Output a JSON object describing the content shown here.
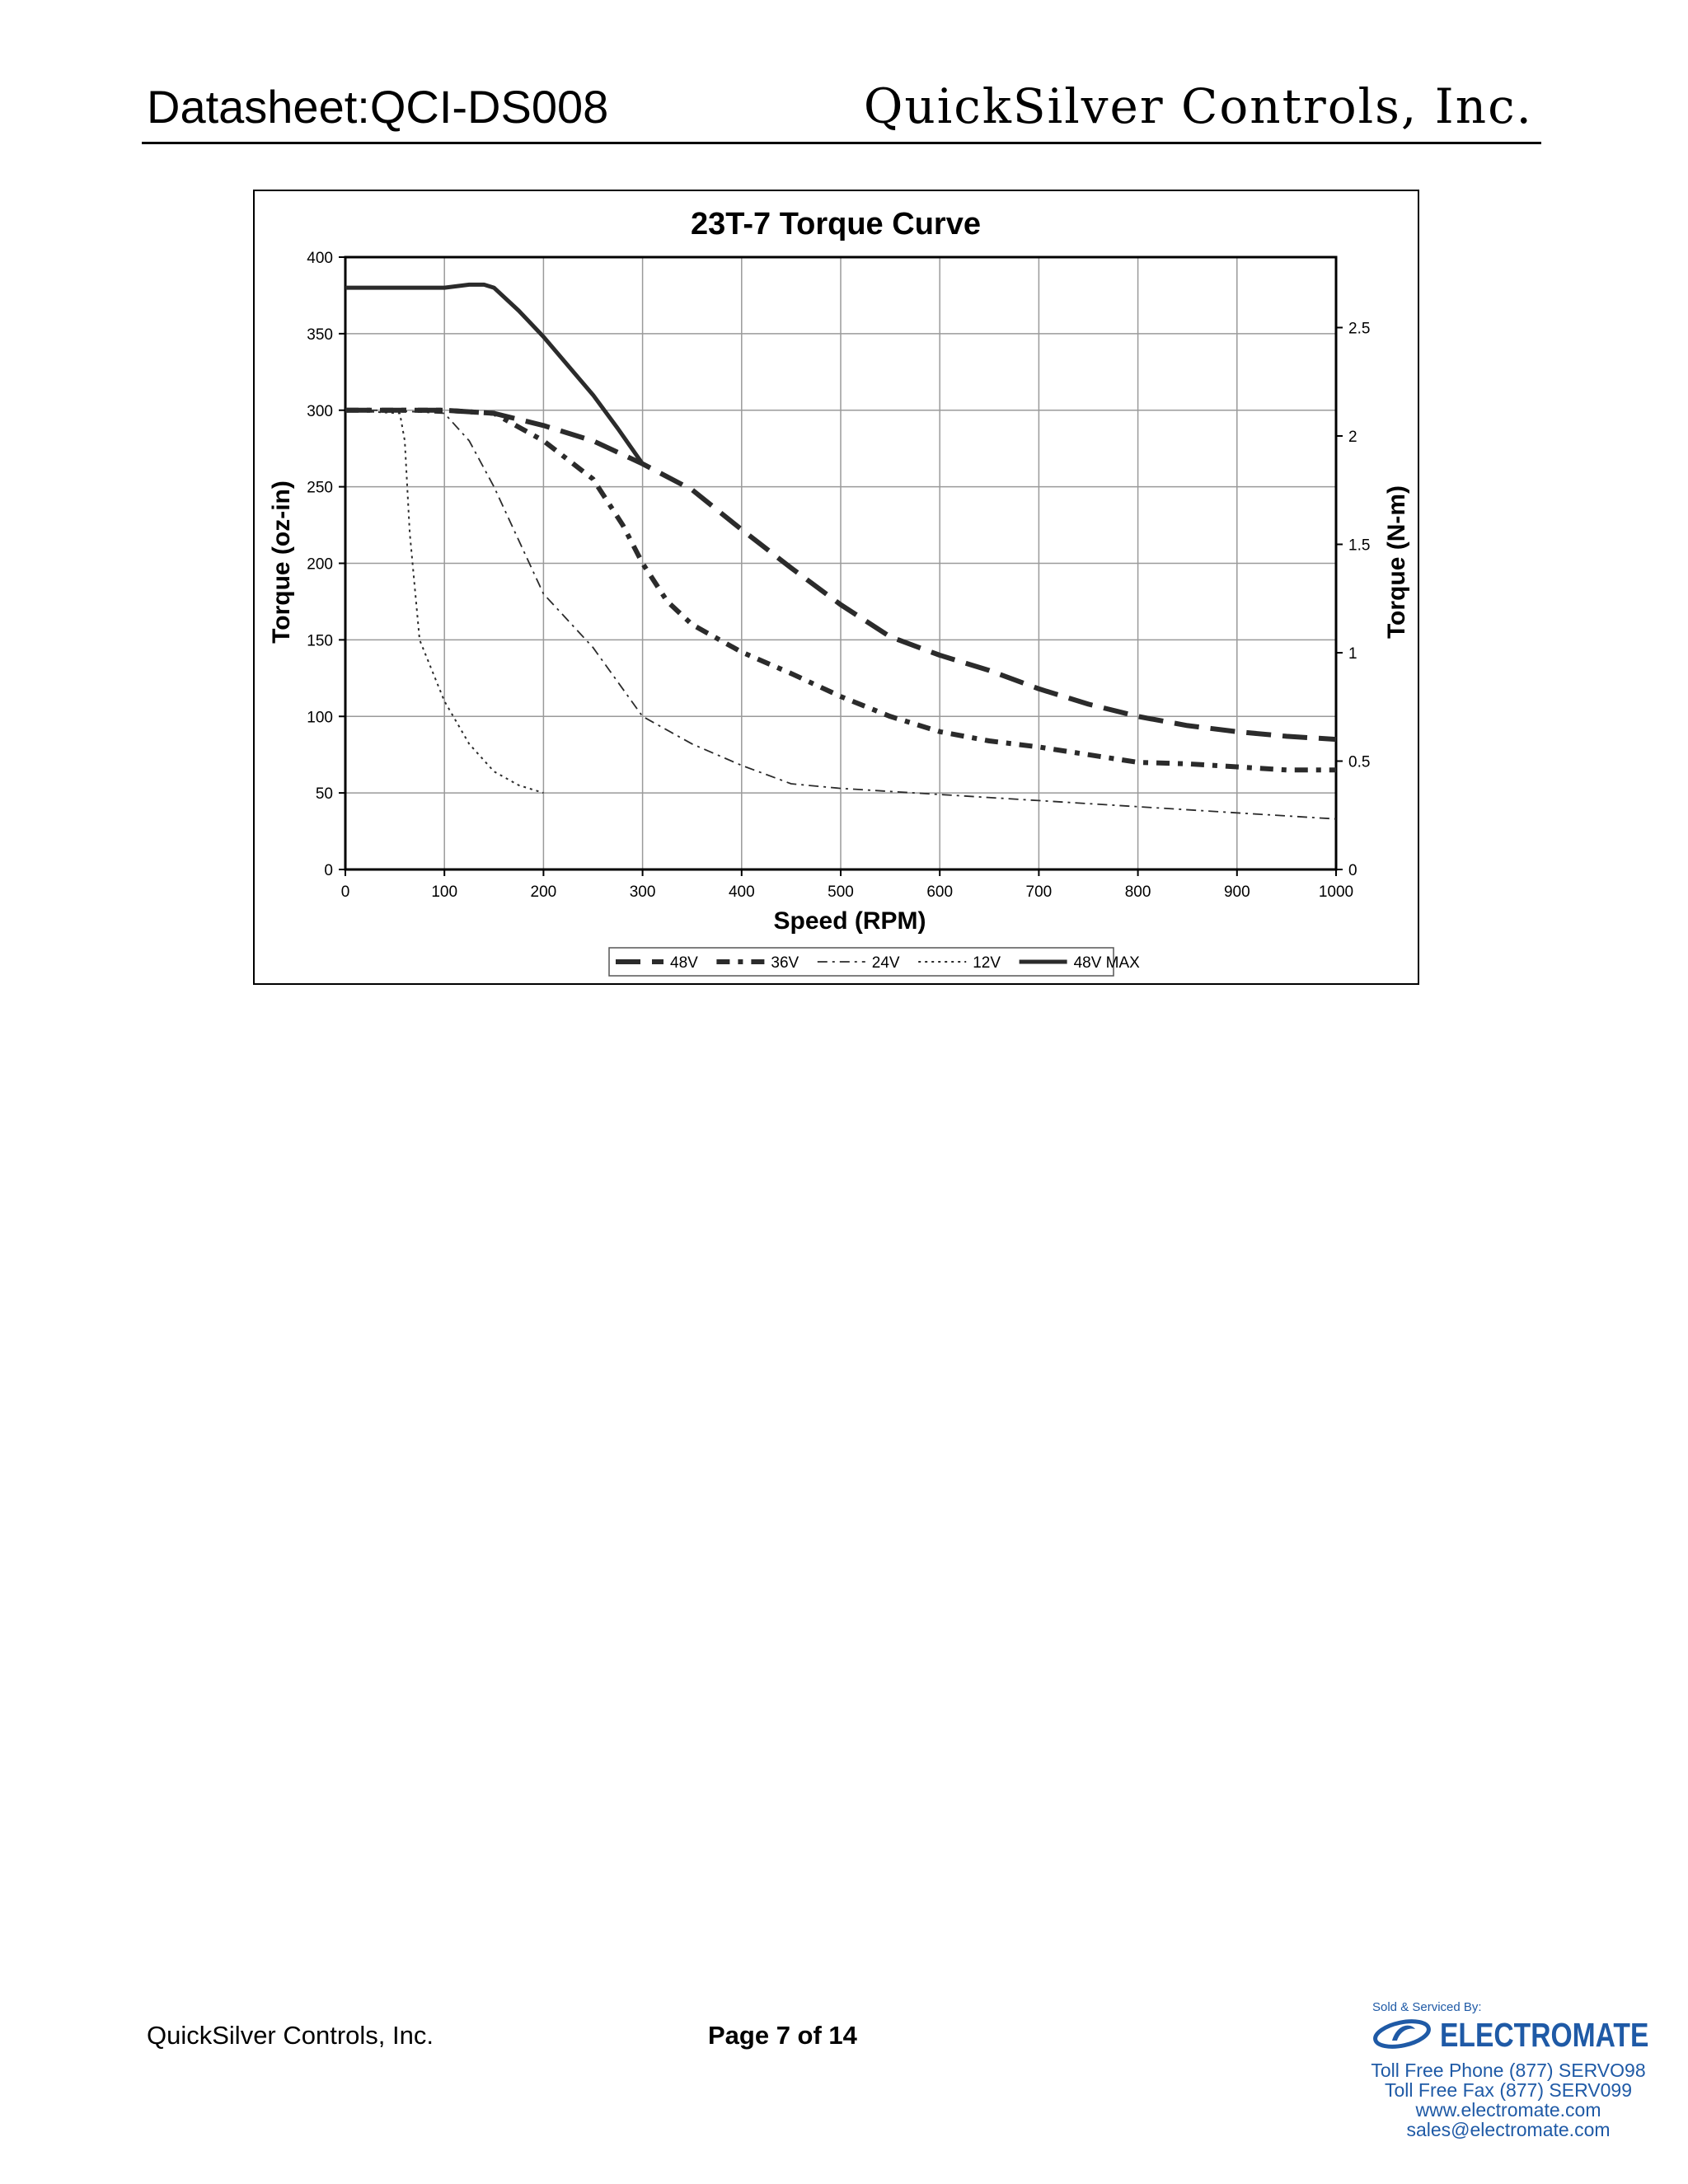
{
  "header": {
    "doc_id": "Datasheet:QCI-DS008",
    "company": "QuickSilver Controls, Inc."
  },
  "chart_data": {
    "type": "line",
    "title": "23T-7 Torque Curve",
    "xlabel": "Speed (RPM)",
    "ylabel": "Torque (oz-in)",
    "y2label": "Torque (N-m)",
    "xlim": [
      0,
      1000
    ],
    "ylim": [
      0,
      400
    ],
    "y2lim": [
      0,
      2.825
    ],
    "x_ticks": [
      "0",
      "100",
      "200",
      "300",
      "400",
      "500",
      "600",
      "700",
      "800",
      "900",
      "1000"
    ],
    "y_ticks": [
      "0",
      "50",
      "100",
      "150",
      "200",
      "250",
      "300",
      "350",
      "400"
    ],
    "y2_ticks": [
      "0",
      "0.5",
      "1",
      "1.5",
      "2",
      "2.5"
    ],
    "grid": true,
    "legend_position": "bottom",
    "series": [
      {
        "name": "48V",
        "style": "long-dash",
        "points": [
          [
            0,
            300
          ],
          [
            100,
            300
          ],
          [
            150,
            298
          ],
          [
            200,
            290
          ],
          [
            250,
            280
          ],
          [
            300,
            265
          ],
          [
            350,
            248
          ],
          [
            400,
            222
          ],
          [
            450,
            197
          ],
          [
            500,
            173
          ],
          [
            550,
            152
          ],
          [
            600,
            140
          ],
          [
            650,
            130
          ],
          [
            700,
            118
          ],
          [
            750,
            108
          ],
          [
            800,
            100
          ],
          [
            850,
            94
          ],
          [
            900,
            90
          ],
          [
            950,
            87
          ],
          [
            1000,
            85
          ]
        ]
      },
      {
        "name": "36V",
        "style": "dash-dot",
        "points": [
          [
            0,
            300
          ],
          [
            100,
            300
          ],
          [
            150,
            298
          ],
          [
            200,
            280
          ],
          [
            250,
            255
          ],
          [
            280,
            225
          ],
          [
            300,
            200
          ],
          [
            325,
            175
          ],
          [
            350,
            160
          ],
          [
            400,
            142
          ],
          [
            450,
            128
          ],
          [
            500,
            113
          ],
          [
            550,
            100
          ],
          [
            600,
            90
          ],
          [
            650,
            84
          ],
          [
            700,
            80
          ],
          [
            750,
            75
          ],
          [
            800,
            70
          ],
          [
            850,
            69
          ],
          [
            900,
            67
          ],
          [
            950,
            65
          ],
          [
            1000,
            65
          ]
        ]
      },
      {
        "name": "24V",
        "style": "fine-dash-dot",
        "points": [
          [
            0,
            300
          ],
          [
            40,
            300
          ],
          [
            100,
            298
          ],
          [
            125,
            280
          ],
          [
            150,
            250
          ],
          [
            200,
            180
          ],
          [
            250,
            145
          ],
          [
            300,
            100
          ],
          [
            350,
            82
          ],
          [
            400,
            68
          ],
          [
            450,
            56
          ],
          [
            500,
            53
          ],
          [
            550,
            51
          ],
          [
            600,
            49
          ],
          [
            700,
            45
          ],
          [
            800,
            41
          ],
          [
            900,
            37
          ],
          [
            1000,
            33
          ]
        ]
      },
      {
        "name": "12V",
        "style": "dotted",
        "points": [
          [
            0,
            300
          ],
          [
            55,
            298
          ],
          [
            60,
            280
          ],
          [
            65,
            220
          ],
          [
            75,
            150
          ],
          [
            100,
            110
          ],
          [
            125,
            82
          ],
          [
            150,
            64
          ],
          [
            175,
            55
          ],
          [
            200,
            50
          ]
        ]
      },
      {
        "name": "48V MAX",
        "style": "solid",
        "points": [
          [
            0,
            380
          ],
          [
            100,
            380
          ],
          [
            125,
            382
          ],
          [
            140,
            382
          ],
          [
            150,
            380
          ],
          [
            175,
            365
          ],
          [
            200,
            348
          ],
          [
            250,
            310
          ],
          [
            275,
            288
          ],
          [
            300,
            265
          ]
        ]
      }
    ]
  },
  "footer": {
    "company": "QuickSilver Controls, Inc.",
    "page_label": "Page 7 of 14"
  },
  "distributor": {
    "sold_by": "Sold & Serviced By:",
    "name": "ELECTROMATE",
    "brand_color": "#1f5aa6",
    "logo_icon": "electromate-swoosh-icon",
    "phone": "Toll Free Phone  (877) SERVO98",
    "fax": "Toll Free Fax  (877) SERV099",
    "website": "www.electromate.com",
    "email": "sales@electromate.com"
  }
}
